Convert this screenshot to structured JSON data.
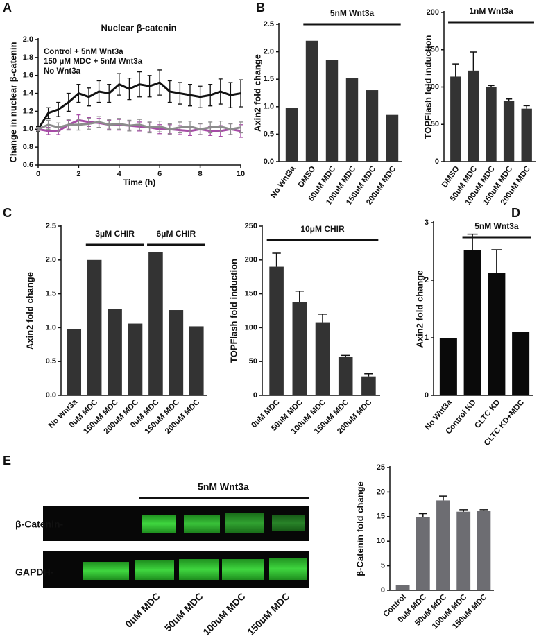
{
  "chart_data": [
    {
      "type": "line",
      "panel": "A",
      "title": "Nuclear β-catenin",
      "x_label": "Time (h)",
      "y_label": "Change in nuclear β-catenin",
      "x": [
        0,
        0.5,
        1,
        1.5,
        2,
        2.5,
        3,
        3.5,
        4,
        4.5,
        5,
        5.5,
        6,
        6.5,
        7,
        7.5,
        8,
        8.5,
        9,
        9.5,
        10
      ],
      "series": [
        {
          "name": "Control + 5nM Wnt3a",
          "color": "#111111",
          "values": [
            1.0,
            1.18,
            1.22,
            1.3,
            1.4,
            1.36,
            1.42,
            1.4,
            1.5,
            1.45,
            1.5,
            1.48,
            1.52,
            1.42,
            1.4,
            1.38,
            1.36,
            1.38,
            1.42,
            1.38,
            1.4
          ],
          "errors": [
            0.03,
            0.06,
            0.08,
            0.1,
            0.1,
            0.1,
            0.12,
            0.1,
            0.12,
            0.12,
            0.14,
            0.12,
            0.14,
            0.12,
            0.12,
            0.12,
            0.12,
            0.12,
            0.14,
            0.14,
            0.15
          ]
        },
        {
          "name": "150 μM MDC + 5nM Wnt3a",
          "color": "#a64ca6",
          "values": [
            1.0,
            0.98,
            0.98,
            1.05,
            1.1,
            1.08,
            1.07,
            1.05,
            1.05,
            1.04,
            1.03,
            1.02,
            1.0,
            1.0,
            0.99,
            0.98,
            1.0,
            0.98,
            0.98,
            1.0,
            0.98
          ],
          "errors": [
            0.02,
            0.04,
            0.04,
            0.05,
            0.06,
            0.05,
            0.05,
            0.05,
            0.06,
            0.05,
            0.05,
            0.05,
            0.05,
            0.05,
            0.05,
            0.05,
            0.06,
            0.05,
            0.06,
            0.06,
            0.07
          ]
        },
        {
          "name": "No Wnt3a",
          "color": "#8c8c8c",
          "values": [
            1.0,
            1.05,
            1.02,
            1.05,
            1.05,
            1.06,
            1.08,
            1.05,
            1.06,
            1.04,
            1.05,
            1.02,
            1.03,
            1.0,
            1.02,
            1.03,
            1.0,
            1.02,
            1.03,
            1.0,
            1.02
          ],
          "errors": [
            0.02,
            0.05,
            0.05,
            0.06,
            0.06,
            0.06,
            0.06,
            0.06,
            0.06,
            0.06,
            0.06,
            0.06,
            0.06,
            0.06,
            0.06,
            0.06,
            0.06,
            0.06,
            0.06,
            0.06,
            0.06
          ]
        }
      ],
      "xlim": [
        0,
        10
      ],
      "xticks": [
        0,
        2,
        4,
        6,
        8,
        10
      ],
      "ylim": [
        0.6,
        2.0
      ],
      "yticks": [
        0.6,
        0.8,
        {
          "value": 1,
          "label": "1.0"
        },
        1.2,
        1.4,
        1.6,
        1.8,
        {
          "value": 2,
          "label": "2.0"
        }
      ],
      "legend": "upper left"
    },
    {
      "type": "bar",
      "panel": "B",
      "y_label": "Axin2 fold change",
      "color": "#333333",
      "categories": [
        "No Wnt3a",
        "DMSO",
        "50uM MDC",
        "100uM MDC",
        "150uM MDC",
        "200uM MDC"
      ],
      "values": [
        0.98,
        2.2,
        1.85,
        1.52,
        1.3,
        0.85
      ],
      "annotations": [
        "5nM Wnt3a"
      ],
      "ylim": [
        0,
        2.5
      ],
      "yticks": [
        {
          "value": 0,
          "label": "0.0"
        },
        0.5,
        {
          "value": 1,
          "label": "1.0"
        },
        1.5,
        {
          "value": 2,
          "label": "2.0"
        },
        2.5
      ]
    },
    {
      "type": "bar",
      "y_label": "TOPFlash fold induction",
      "color": "#333333",
      "categories": [
        "DMSO",
        "50uM MDC",
        "100uM MDC",
        "150uM MDC",
        "200uM MDC"
      ],
      "values": [
        114,
        122,
        100,
        81,
        71
      ],
      "errors": [
        17,
        25,
        2,
        3,
        4
      ],
      "annotations": [
        "1nM Wnt3a"
      ],
      "ylim": [
        0,
        200
      ],
      "yticks": [
        0,
        50,
        100,
        150,
        200
      ]
    },
    {
      "type": "bar",
      "panel": "C",
      "y_label": "Axin2 fold change",
      "color": "#333333",
      "categories": [
        "No Wnt3a",
        "0uM MDC",
        "150uM MDC",
        "200uM MDC",
        "0uM MDC",
        "150uM MDC",
        "200uM MDC"
      ],
      "values": [
        0.98,
        2.0,
        1.28,
        1.06,
        2.12,
        1.26,
        1.02
      ],
      "annotations": [
        "3μM CHIR",
        "6μM CHIR"
      ],
      "ylim": [
        0,
        2.5
      ],
      "yticks": [
        {
          "value": 0,
          "label": "0.0"
        },
        0.5,
        {
          "value": 1,
          "label": "1.0"
        },
        1.5,
        {
          "value": 2,
          "label": "2.0"
        },
        2.5
      ]
    },
    {
      "type": "bar",
      "y_label": "TOPFlash fold induction",
      "color": "#333333",
      "categories": [
        "0uM MDC",
        "50uM MDC",
        "100uM MDC",
        "150uM MDC",
        "200uM MDC"
      ],
      "values": [
        190,
        138,
        108,
        57,
        28
      ],
      "errors": [
        20,
        16,
        12,
        2,
        4
      ],
      "annotations": [
        "10μM CHIR"
      ],
      "ylim": [
        0,
        250
      ],
      "yticks": [
        0,
        50,
        100,
        150,
        200,
        250
      ]
    },
    {
      "type": "bar",
      "panel": "D",
      "y_label": "Axin2 fold change",
      "color": "#0a0a0a",
      "categories": [
        "No Wnt3a",
        "Control KD",
        "CLTC KD",
        "CLTC KD+MDC"
      ],
      "values": [
        1.0,
        2.52,
        2.13,
        1.1
      ],
      "errors": [
        null,
        0.28,
        0.4,
        null
      ],
      "annotations": [
        "5nM Wnt3a"
      ],
      "ylim": [
        0,
        3
      ],
      "yticks": [
        0,
        1,
        2,
        3
      ]
    },
    {
      "type": "bar",
      "panel": "E",
      "y_label": "β-Catenin fold change",
      "color": "#6d6d72",
      "categories": [
        "Control",
        "0uM MDC",
        "50uM MDC",
        "100uM MDC",
        "150uM MDC"
      ],
      "values": [
        1.0,
        14.9,
        18.3,
        16.0,
        16.2
      ],
      "errors": [
        null,
        0.7,
        0.9,
        0.4,
        0.2
      ],
      "ylim": [
        0,
        25
      ],
      "yticks": [
        0,
        5,
        10,
        15,
        20,
        25
      ]
    }
  ],
  "blot": {
    "treatment": "5nM Wnt3a",
    "rows": [
      "β-Catenin-",
      "GAPDH-"
    ],
    "lanes": [
      "0uM MDC",
      "50uM MDC",
      "100uM MDC",
      "150uM MDC"
    ]
  }
}
